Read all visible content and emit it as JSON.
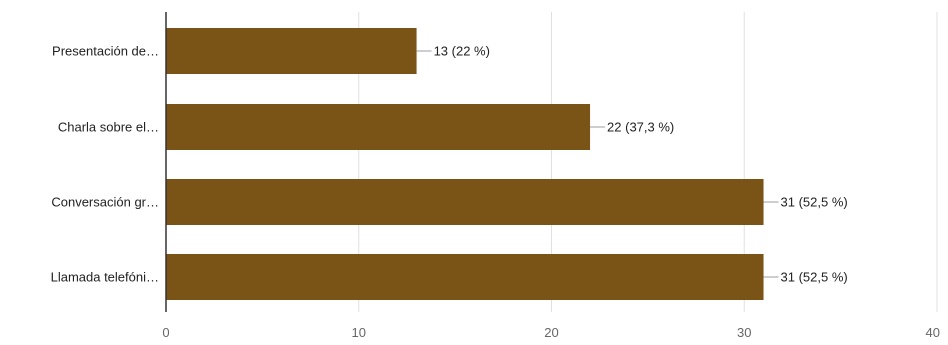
{
  "chart_data": {
    "type": "bar",
    "orientation": "horizontal",
    "categories": [
      "Presentación de…",
      "Charla sobre el…",
      "Conversación gr…",
      "Llamada telefóni…"
    ],
    "values": [
      13,
      22,
      31,
      31
    ],
    "data_labels": [
      "13 (22 %)",
      "22 (37,3 %)",
      "31 (52,5 %)",
      "31 (52,5 %)"
    ],
    "x_ticks": [
      "0",
      "10",
      "20",
      "30",
      "40"
    ],
    "xlim": [
      0,
      40
    ],
    "grid": true,
    "legend": "none",
    "bar_color": "#7a5416",
    "gridline_color": "#e0e0e0",
    "axis_color": "#333333",
    "leader_color": "#9e9e9e"
  }
}
